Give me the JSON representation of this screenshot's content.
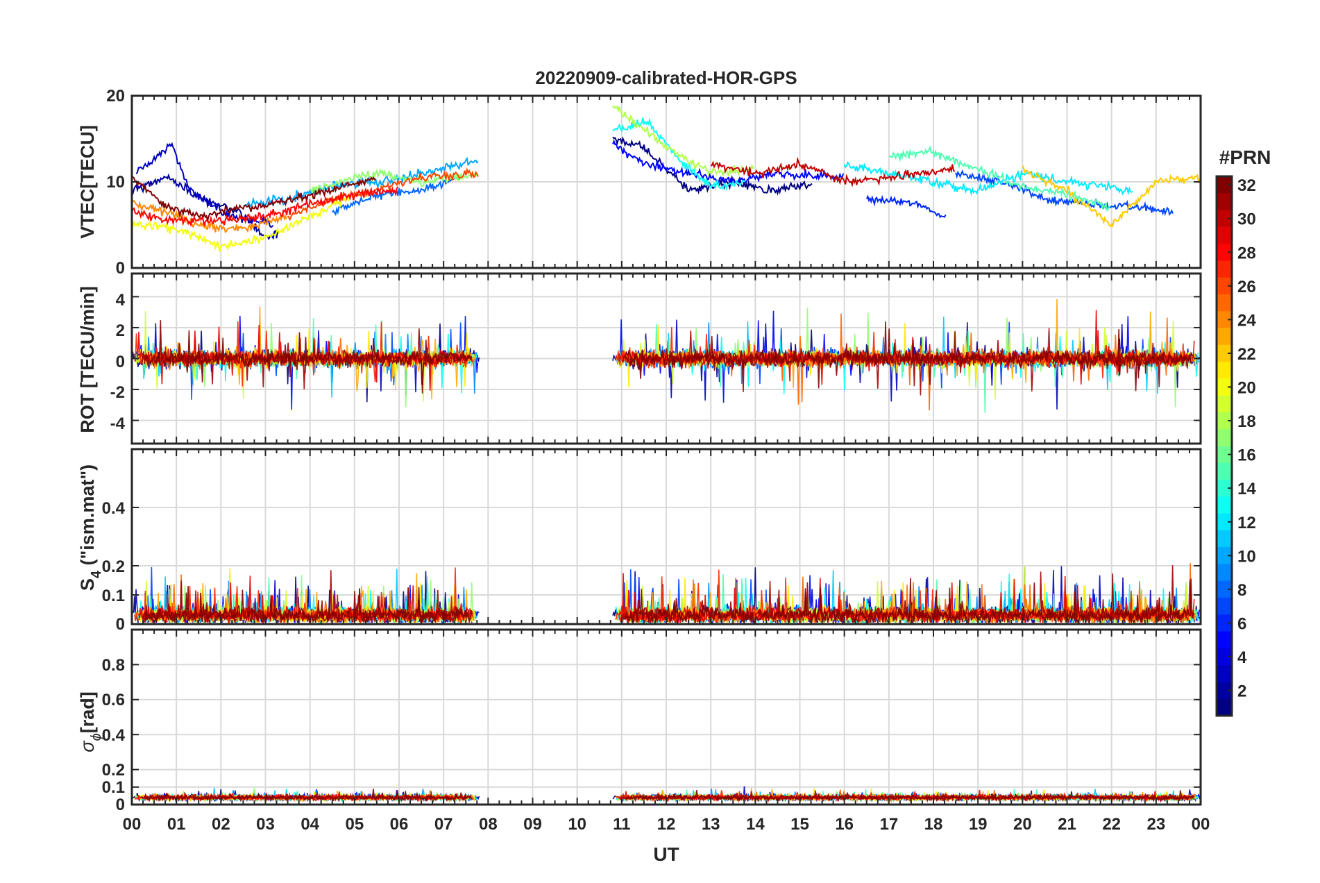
{
  "chart_data": {
    "type": "line",
    "title": "20220909-calibrated-HOR-GPS",
    "xlabel": "UT",
    "x_range_hours": [
      0,
      24
    ],
    "x_tick_labels": [
      "00",
      "01",
      "02",
      "03",
      "04",
      "05",
      "06",
      "07",
      "08",
      "09",
      "10",
      "11",
      "12",
      "13",
      "14",
      "15",
      "16",
      "17",
      "18",
      "19",
      "20",
      "21",
      "22",
      "23",
      "00"
    ],
    "data_gap_hours": [
      7.8,
      10.8
    ],
    "grid": true,
    "panels": [
      {
        "id": "vtec",
        "ylabel": "VTEC[TECU]",
        "ylim": [
          0,
          20
        ],
        "yticks": [
          0,
          10,
          20
        ],
        "ytick_labels": [
          "0",
          "10",
          "20"
        ]
      },
      {
        "id": "rot",
        "ylabel": "ROT [TECU/min]",
        "ylim": [
          -5.5,
          5.5
        ],
        "yticks": [
          -4,
          -2,
          0,
          2,
          4
        ],
        "ytick_labels": [
          "-4",
          "-2",
          "0",
          "2",
          "4"
        ]
      },
      {
        "id": "s4",
        "ylabel_main": "S",
        "ylabel_sub": "4",
        "ylabel_rest": " (\"ism.mat\")",
        "ylim": [
          0,
          0.6
        ],
        "yticks": [
          0,
          0.1,
          0.2,
          0.4
        ],
        "ytick_labels": [
          "0",
          "0.1",
          "0.2",
          "0.4"
        ]
      },
      {
        "id": "sigma",
        "ylabel_main": "σ",
        "ylabel_sub": "ϕ",
        "ylabel_rest": "[rad]",
        "ylim": [
          0,
          1
        ],
        "yticks": [
          0,
          0.1,
          0.2,
          0.4,
          0.6,
          0.8
        ],
        "ytick_labels": [
          "0",
          "0.1",
          "0.2",
          "0.4",
          "0.6",
          "0.8"
        ]
      }
    ],
    "colorbar": {
      "title": "#PRN",
      "range": [
        1,
        32
      ],
      "ticks": [
        2,
        4,
        6,
        8,
        10,
        12,
        14,
        16,
        18,
        20,
        22,
        24,
        26,
        28,
        30,
        32
      ],
      "tick_labels": [
        "2",
        "4",
        "6",
        "8",
        "10",
        "12",
        "14",
        "16",
        "18",
        "20",
        "22",
        "24",
        "26",
        "28",
        "30",
        "32"
      ],
      "colormap": "jet"
    },
    "series": [
      {
        "prn": 1,
        "vtec": [
          [
            10.8,
            15
          ],
          [
            11.5,
            14
          ],
          [
            12.5,
            9
          ],
          [
            13.5,
            10
          ],
          [
            14.5,
            9
          ],
          [
            15.3,
            10
          ]
        ]
      },
      {
        "prn": 2,
        "vtec": [
          [
            0,
            9
          ],
          [
            0.8,
            10.5
          ],
          [
            1.6,
            8
          ],
          [
            2.4,
            6.5
          ],
          [
            3,
            3.5
          ],
          [
            3.3,
            4
          ]
        ]
      },
      {
        "prn": 3,
        "vtec": [
          [
            0.1,
            11
          ],
          [
            0.5,
            12.5
          ],
          [
            0.9,
            14.5
          ],
          [
            1.3,
            9
          ],
          [
            2.2,
            6
          ],
          [
            3.2,
            5
          ]
        ]
      },
      {
        "prn": 5,
        "vtec": [
          [
            10.8,
            14.5
          ],
          [
            11.5,
            12
          ],
          [
            12.5,
            11
          ],
          [
            13.5,
            10
          ],
          [
            14.5,
            11
          ],
          [
            16,
            10.5
          ]
        ]
      },
      {
        "prn": 6,
        "vtec": [
          [
            16.5,
            8
          ],
          [
            17.5,
            7.5
          ],
          [
            18.3,
            6
          ]
        ]
      },
      {
        "prn": 7,
        "vtec": [
          [
            18.5,
            11
          ],
          [
            19.5,
            10
          ],
          [
            20.5,
            8
          ],
          [
            21.5,
            7.5
          ],
          [
            22.5,
            7
          ],
          [
            23.4,
            6.5
          ]
        ]
      },
      {
        "prn": 8,
        "vtec": [
          [
            4.5,
            6.5
          ],
          [
            5.5,
            8.5
          ],
          [
            6.5,
            9
          ],
          [
            7.4,
            10.5
          ]
        ]
      },
      {
        "prn": 10,
        "vtec": [
          [
            2.5,
            7.5
          ],
          [
            3.5,
            8
          ],
          [
            4.5,
            9.5
          ],
          [
            5.5,
            10
          ],
          [
            6.5,
            11
          ],
          [
            7.8,
            12.5
          ]
        ]
      },
      {
        "prn": 12,
        "vtec": [
          [
            16,
            12
          ],
          [
            17,
            11
          ],
          [
            18,
            10
          ],
          [
            19,
            9
          ],
          [
            20,
            11
          ],
          [
            21,
            10
          ],
          [
            22.5,
            9
          ]
        ]
      },
      {
        "prn": 13,
        "vtec": [
          [
            10.8,
            16
          ],
          [
            11.6,
            17
          ],
          [
            12.3,
            12.5
          ],
          [
            13,
            9.5
          ],
          [
            13.8,
            10
          ]
        ]
      },
      {
        "prn": 15,
        "vtec": [
          [
            17,
            13
          ],
          [
            18,
            13.5
          ],
          [
            19,
            11.5
          ],
          [
            20,
            9.5
          ],
          [
            21,
            8.5
          ],
          [
            22,
            7
          ]
        ]
      },
      {
        "prn": 17,
        "vtec": [
          [
            4,
            9
          ],
          [
            5,
            10.5
          ],
          [
            5.6,
            11
          ],
          [
            6.5,
            10
          ],
          [
            7.8,
            11
          ]
        ]
      },
      {
        "prn": 18,
        "vtec": [
          [
            10.8,
            19
          ],
          [
            11.5,
            16
          ],
          [
            12.3,
            13
          ],
          [
            13,
            11
          ],
          [
            14,
            11.5
          ]
        ]
      },
      {
        "prn": 20,
        "vtec": [
          [
            0,
            5
          ],
          [
            1,
            4.5
          ],
          [
            2,
            2.5
          ],
          [
            3,
            3.5
          ],
          [
            4,
            6
          ],
          [
            5,
            8.5
          ]
        ]
      },
      {
        "prn": 22,
        "vtec": [
          [
            20,
            11.5
          ],
          [
            21,
            9
          ],
          [
            22,
            5
          ],
          [
            23,
            10
          ],
          [
            24,
            10.5
          ]
        ]
      },
      {
        "prn": 24,
        "vtec": [
          [
            0,
            7.5
          ],
          [
            0.8,
            6.5
          ],
          [
            1.5,
            5
          ],
          [
            2.5,
            4.5
          ],
          [
            3.5,
            6
          ]
        ]
      },
      {
        "prn": 26,
        "vtec": [
          [
            3.5,
            6
          ],
          [
            4.5,
            8
          ],
          [
            5.5,
            9
          ],
          [
            6.5,
            10.5
          ],
          [
            7.8,
            11
          ]
        ]
      },
      {
        "prn": 28,
        "vtec": [
          [
            0,
            6.5
          ],
          [
            1,
            5.5
          ],
          [
            2,
            5.5
          ],
          [
            3,
            6
          ],
          [
            4,
            7.5
          ],
          [
            5,
            8.5
          ],
          [
            6,
            9
          ]
        ]
      },
      {
        "prn": 30,
        "vtec": [
          [
            13,
            12
          ],
          [
            14,
            11
          ],
          [
            15,
            12
          ],
          [
            16,
            10
          ],
          [
            17,
            10.5
          ],
          [
            18.5,
            11.5
          ]
        ]
      },
      {
        "prn": 32,
        "vtec": [
          [
            0,
            10.5
          ],
          [
            0.8,
            7
          ],
          [
            1.6,
            6
          ],
          [
            2.4,
            7
          ],
          [
            3.2,
            7.5
          ],
          [
            4.5,
            9
          ],
          [
            5.5,
            10.5
          ]
        ]
      }
    ]
  }
}
